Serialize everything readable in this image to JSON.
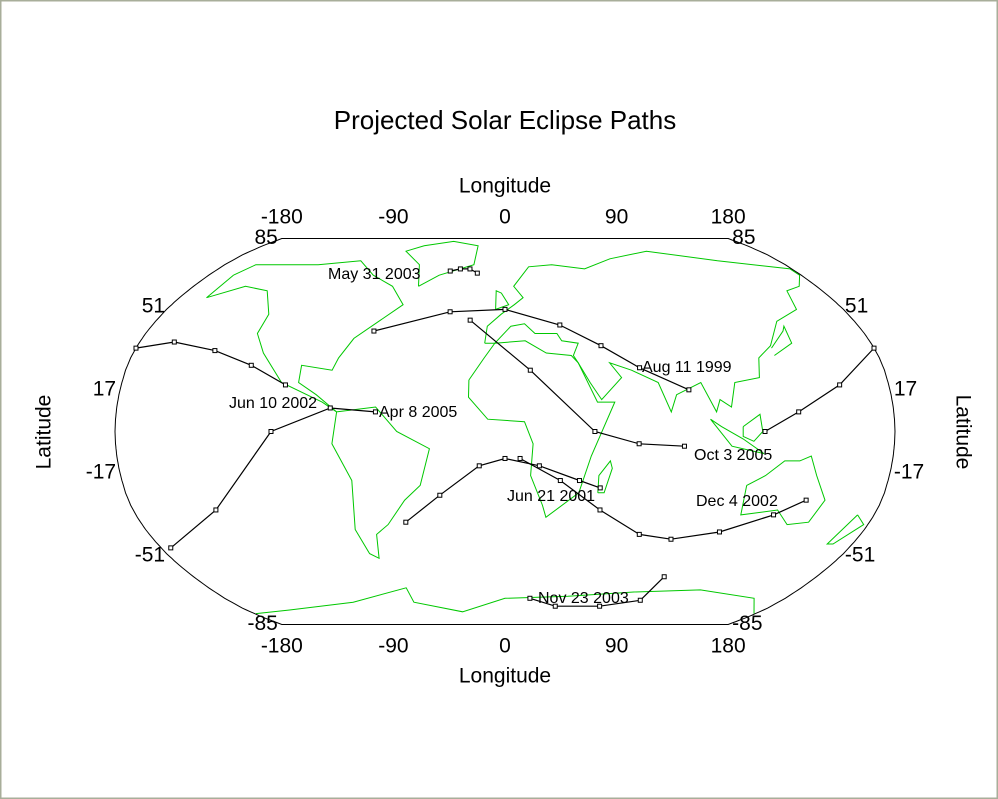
{
  "chart_data": {
    "type": "map",
    "title": "Projected Solar Eclipse Paths",
    "x_label": "Longitude",
    "y_label": "Latitude",
    "xlim": [
      -180,
      180
    ],
    "ylim": [
      -85,
      85
    ],
    "xticks": [
      -180,
      -90,
      0,
      90,
      180
    ],
    "yticks": [
      85,
      51,
      17,
      -17,
      -51,
      -85
    ],
    "land_color": "#00c800",
    "series": [
      {
        "name": "Aug 11 1999",
        "color": "#000000",
        "x": [
          -66,
          -29,
          0,
          28,
          47,
          64,
          86
        ],
        "y": [
          41,
          49,
          50,
          43.5,
          35,
          26,
          17
        ]
      },
      {
        "name": "Jun 21 2001",
        "color": "#000000",
        "x": [
          -49,
          -31,
          -12,
          0,
          16,
          35,
          45
        ],
        "y": [
          -37,
          -26,
          -14,
          -11,
          -14,
          -20,
          -23
        ]
      },
      {
        "name": "Jun 10 2002",
        "color": "#000000",
        "x": [
          120,
          136,
          157,
          180,
          null,
          -180,
          -163,
          -141,
          -121,
          -103
        ],
        "y": [
          0,
          8,
          19,
          34,
          null,
          34,
          36.5,
          33,
          27,
          19
        ]
      },
      {
        "name": "Dec 4 2002",
        "color": "#000000",
        "x": [
          7,
          26,
          46,
          68,
          85,
          108,
          131,
          144
        ],
        "y": [
          -11,
          -20,
          -32,
          -42,
          -44,
          -41,
          -34,
          -28
        ]
      },
      {
        "name": "May 31 2003",
        "color": "#000000",
        "x": [
          -34,
          -28,
          -22,
          -17
        ],
        "y": [
          67,
          68,
          68,
          66
        ]
      },
      {
        "name": "Nov 23 2003",
        "color": "#000000",
        "x": [
          16,
          34,
          64,
          88,
          92
        ],
        "y": [
          -70,
          -74,
          -74,
          -71,
          -60
        ]
      },
      {
        "name": "Apr 8 2005",
        "color": "#000000",
        "x": [
          -175,
          -140,
          -108,
          -81,
          -60
        ],
        "y": [
          -47.6,
          -32,
          0,
          9.6,
          8
        ]
      },
      {
        "name": "Oct 3 2005",
        "color": "#000000",
        "x": [
          -18,
          12,
          41.5,
          62,
          83
        ],
        "y": [
          45.5,
          25,
          0,
          -5,
          -6
        ]
      }
    ]
  }
}
